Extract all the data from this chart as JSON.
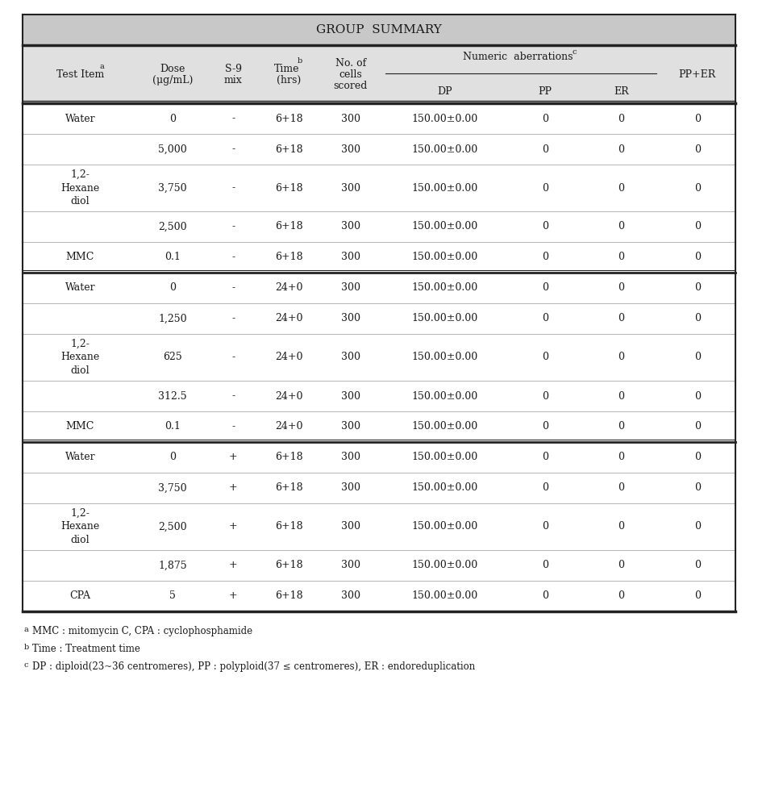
{
  "title": "GROUP  SUMMARY",
  "rows": [
    [
      "Water",
      "0",
      "-",
      "6+18",
      "300",
      "150.00±0.00",
      "0",
      "0",
      "0"
    ],
    [
      "",
      "5,000",
      "-",
      "6+18",
      "300",
      "150.00±0.00",
      "0",
      "0",
      "0"
    ],
    [
      "1,2-\nHexane\ndiol",
      "3,750",
      "-",
      "6+18",
      "300",
      "150.00±0.00",
      "0",
      "0",
      "0"
    ],
    [
      "",
      "2,500",
      "-",
      "6+18",
      "300",
      "150.00±0.00",
      "0",
      "0",
      "0"
    ],
    [
      "MMC",
      "0.1",
      "-",
      "6+18",
      "300",
      "150.00±0.00",
      "0",
      "0",
      "0"
    ],
    [
      "Water",
      "0",
      "-",
      "24+0",
      "300",
      "150.00±0.00",
      "0",
      "0",
      "0"
    ],
    [
      "",
      "1,250",
      "-",
      "24+0",
      "300",
      "150.00±0.00",
      "0",
      "0",
      "0"
    ],
    [
      "1,2-\nHexane\ndiol",
      "625",
      "-",
      "24+0",
      "300",
      "150.00±0.00",
      "0",
      "0",
      "0"
    ],
    [
      "",
      "312.5",
      "-",
      "24+0",
      "300",
      "150.00±0.00",
      "0",
      "0",
      "0"
    ],
    [
      "MMC",
      "0.1",
      "-",
      "24+0",
      "300",
      "150.00±0.00",
      "0",
      "0",
      "0"
    ],
    [
      "Water",
      "0",
      "+",
      "6+18",
      "300",
      "150.00±0.00",
      "0",
      "0",
      "0"
    ],
    [
      "",
      "3,750",
      "+",
      "6+18",
      "300",
      "150.00±0.00",
      "0",
      "0",
      "0"
    ],
    [
      "1,2-\nHexane\ndiol",
      "2,500",
      "+",
      "6+18",
      "300",
      "150.00±0.00",
      "0",
      "0",
      "0"
    ],
    [
      "",
      "1,875",
      "+",
      "6+18",
      "300",
      "150.00±0.00",
      "0",
      "0",
      "0"
    ],
    [
      "CPA",
      "5",
      "+",
      "6+18",
      "300",
      "150.00±0.00",
      "0",
      "0",
      "0"
    ]
  ],
  "section_dividers_after": [
    4,
    9
  ],
  "footnotes": [
    [
      "a",
      "MMC : mitomycin C, CPA : cyclophosphamide"
    ],
    [
      "b",
      "Time : Treatment time"
    ],
    [
      "c",
      "DP : diploid(23~36 centromeres), PP : polyploid(37 ≤ centromeres), ER : endoreduplication"
    ]
  ],
  "bg_title": "#c8c8c8",
  "bg_header": "#e0e0e0",
  "bg_body": "#ffffff",
  "text_color": "#1a1a1a",
  "line_color_heavy": "#222222",
  "line_color_light": "#999999",
  "title_fontsize": 11,
  "header_fontsize": 9,
  "body_fontsize": 9,
  "footnote_fontsize": 8.5
}
